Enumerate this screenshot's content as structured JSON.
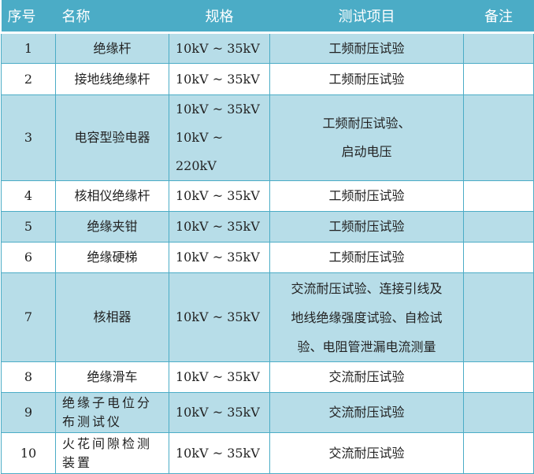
{
  "header": [
    "序号",
    "名称",
    "规格",
    "测试项目",
    "备注"
  ],
  "colors": {
    "header": "#4bacc6",
    "stripe": "#b7dde8",
    "border": "#4bacc6"
  },
  "rows": [
    {
      "no": "1",
      "name": "绝缘杆",
      "spec": [
        "10kV ~ 35kV"
      ],
      "test": [
        "工频耐压试验"
      ],
      "note": ""
    },
    {
      "no": "2",
      "name": "接地线绝缘杆",
      "spec": [
        "10kV ~ 35kV"
      ],
      "test": [
        "工频耐压试验"
      ],
      "note": ""
    },
    {
      "no": "3",
      "name": "电容型验电器",
      "spec": [
        "10kV ~ 35kV",
        "10kV ~ 220kV"
      ],
      "test": [
        "工频耐压试验、",
        "启动电压"
      ],
      "note": ""
    },
    {
      "no": "4",
      "name": "核相仪绝缘杆",
      "spec": [
        "10kV ~ 35kV"
      ],
      "test": [
        "工频耐压试验"
      ],
      "note": ""
    },
    {
      "no": "5",
      "name": "绝缘夹钳",
      "spec": [
        "10kV ~ 35kV"
      ],
      "test": [
        "工频耐压试验"
      ],
      "note": ""
    },
    {
      "no": "6",
      "name": "绝缘硬梯",
      "spec": [
        "10kV ~ 35kV"
      ],
      "test": [
        "工频耐压试验"
      ],
      "note": ""
    },
    {
      "no": "7",
      "name": "核相器",
      "spec": [
        "10kV ~ 35kV"
      ],
      "test": [
        "交流耐压试验、连接引线及",
        "地线绝缘强度试验、自检试",
        "验、电阻管泄漏电流测量"
      ],
      "note": ""
    },
    {
      "no": "8",
      "name": "绝缘滑车",
      "spec": [
        "10kV ~ 35kV"
      ],
      "test": [
        "交流耐压试验"
      ],
      "note": ""
    },
    {
      "no": "9",
      "name": "绝缘子电位分布测试仪",
      "spec": [
        "10kV ~ 35kV"
      ],
      "test": [
        "交流耐压试验"
      ],
      "note": ""
    },
    {
      "no": "10",
      "name": "火花间隙检测装置",
      "spec": [
        "10kV ~ 35kV"
      ],
      "test": [
        "交流耐压试验"
      ],
      "note": ""
    }
  ]
}
